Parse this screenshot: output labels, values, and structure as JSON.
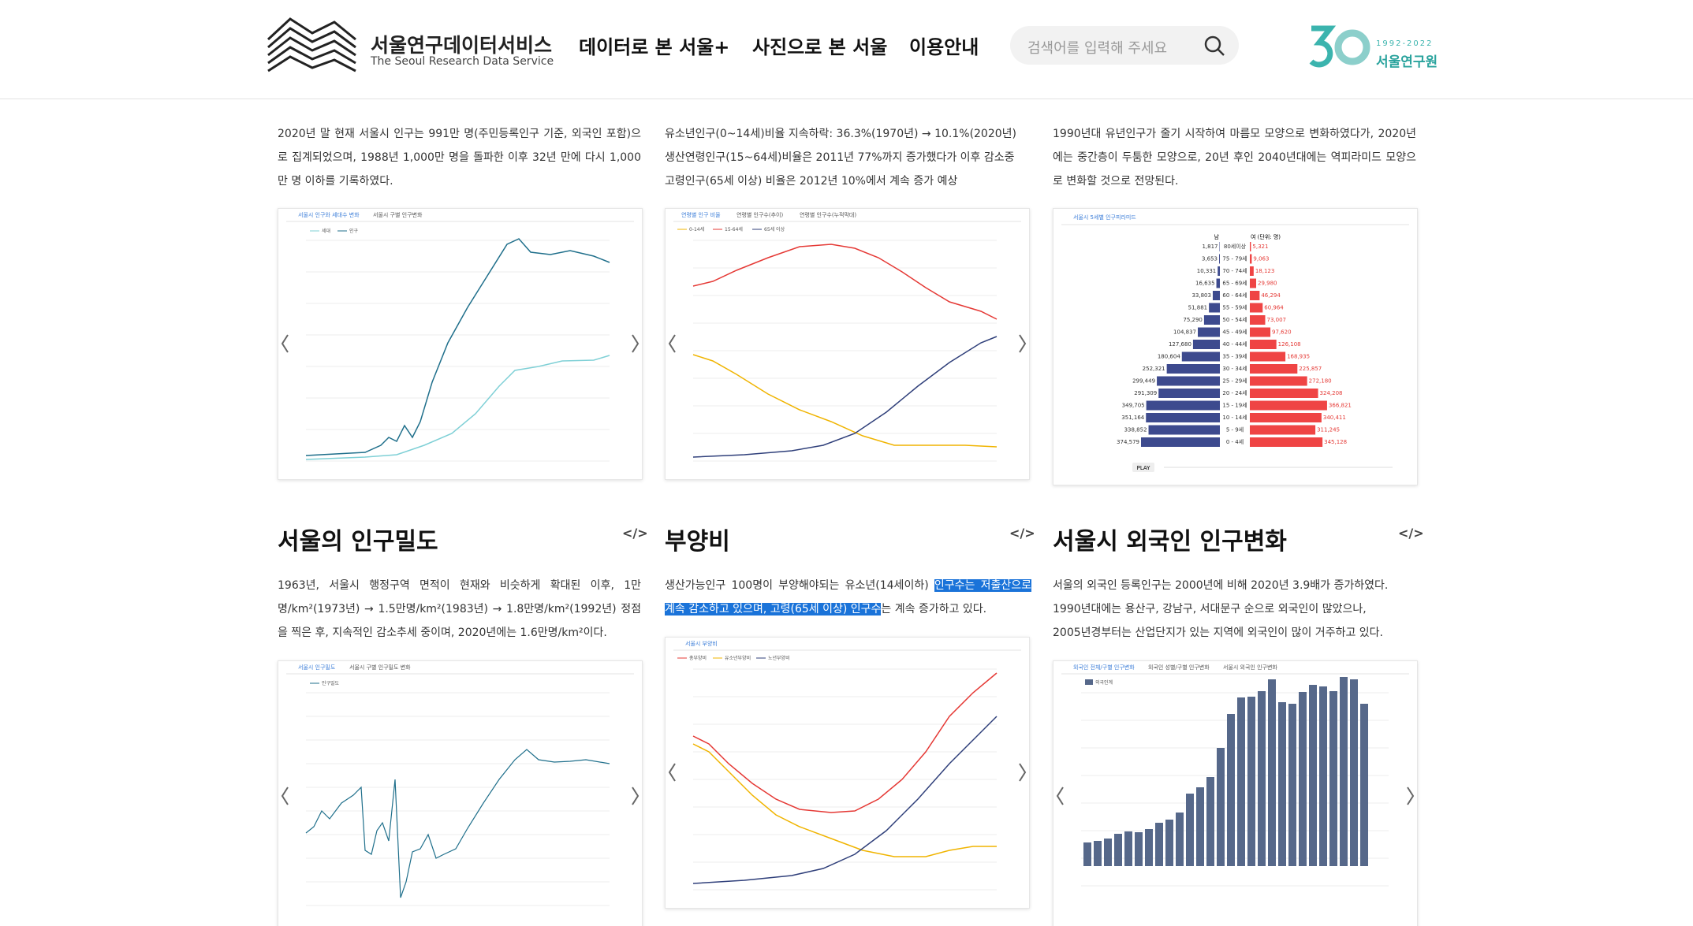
{
  "header": {
    "logo_title": "서울연구데이터서비스",
    "logo_subtitle": "The Seoul Research Data Service",
    "nav": [
      "데이터로 본 서울+",
      "사진으로 본 서울",
      "이용안내"
    ],
    "search_placeholder": "검색어를 입력해 주세요",
    "badge_years": "1992-2022",
    "badge_name": "서울연구원"
  },
  "cards": [
    {
      "text": "2020년 말 현재 서울시 인구는 991만 명(주민등록인구 기준, 외국인 포함)으로 집계되었으며, 1988년 1,000만 명을 돌파한 이후 32년 만에 다시 1,000만 명 이하를 기록하였다.",
      "tabs": [
        "서울시 인구와 세대수 변화",
        "서울시 구별 인구변화"
      ],
      "legend": [
        "세대",
        "인구"
      ]
    },
    {
      "text_lines": [
        "유소년인구(0~14세)비율 지속하락: 36.3%(1970년) → 10.1%(2020년)",
        "생산연령인구(15~64세)비율은 2011년 77%까지 증가했다가 이후 감소중",
        "고령인구(65세 이상) 비율은 2012년 10%에서 계속 증가 예상"
      ],
      "tabs": [
        "연령별 인구 비율",
        "연령별 인구수(추이)",
        "연령별 인구수(누적막대)"
      ],
      "legend": [
        "0-14세",
        "15-64세",
        "65세 이상"
      ]
    },
    {
      "text": "1990년대 유년인구가 줄기 시작하여 마름모 모양으로 변화하였다가, 2020년에는 중간층이 두툼한 모양으로, 20년 후인 2040년대에는 역피라미드 모양으로 변화할 것으로 전망된다.",
      "tabs": [
        "서울시 5세별 인구피라미드"
      ],
      "pyramid": {
        "male_header": "남",
        "female_header": "여 (단위: 명)",
        "play": "PLAY",
        "ages": [
          "80세이상",
          "75 - 79세",
          "70 - 74세",
          "65 - 69세",
          "60 - 64세",
          "55 - 59세",
          "50 - 54세",
          "45 - 49세",
          "40 - 44세",
          "35 - 39세",
          "30 - 34세",
          "25 - 29세",
          "20 - 24세",
          "15 - 19세",
          "10 - 14세",
          "5 - 9세",
          "0 - 4세"
        ],
        "male": [
          1817,
          3653,
          10331,
          16635,
          33803,
          51881,
          75290,
          104837,
          127680,
          180604,
          252321,
          299449,
          291309,
          349705,
          351164,
          338852,
          374579
        ],
        "male_labels": [
          "1,817",
          "3,653",
          "10,331",
          "16,635",
          "33,803",
          "51,881",
          "75,290",
          "104,837",
          "127,680",
          "180,604",
          "252,321",
          "299,449",
          "291,309",
          "349,705",
          "351,164",
          "338,852",
          "374,579"
        ],
        "female": [
          5321,
          9063,
          18123,
          29980,
          46294,
          60964,
          73007,
          97620,
          126108,
          168935,
          225857,
          272180,
          324208,
          366821,
          340411,
          311245,
          345128
        ],
        "female_labels": [
          "5,321",
          "9,063",
          "18,123",
          "29,980",
          "46,294",
          "60,964",
          "73,007",
          "97,620",
          "126,108",
          "168,935",
          "225,857",
          "272,180",
          "324,208",
          "366,821",
          "340,411",
          "311,245",
          "345,128"
        ]
      }
    },
    {
      "title": "서울의 인구밀도",
      "code_icon": "</>",
      "text": "1963년, 서울시 행정구역 면적이 현재와 비슷하게 확대된 이후, 1만명/km²(1973년) → 1.5만명/km²(1983년) → 1.8만명/km²(1992년) 정점을 찍은 후, 지속적인 감소추세 중이며, 2020년에는 1.6만명/km²이다.",
      "tabs": [
        "서울시 인구밀도",
        "서울시 구별 인구밀도 변화"
      ],
      "legend": [
        "인구밀도"
      ]
    },
    {
      "title": "부양비",
      "code_icon": "</>",
      "text_parts": [
        "생산가능인구 100명이 부양해야되는 유소년(14세이하) ",
        "인구수는 저출산으로 계속 감소하고 있으며, 고령(65세 이상) 인구수",
        "는 계속 증가하고 있다."
      ],
      "tabs": [
        "서울시 부양비"
      ],
      "legend": [
        "총부양비",
        "유소년부양비",
        "노년부양비"
      ]
    },
    {
      "title": "서울시 외국인 인구변화",
      "code_icon": "</>",
      "text_lines": [
        "서울의 외국인 등록인구는 2000년에 비해 2020년 3.9배가 증가하였다.",
        "1990년대에는 용산구, 강남구, 서대문구 순으로 외국인이 많았으나,",
        "2005년경부터는 산업단지가 있는 지역에 외국인이 많이 거주하고 있다."
      ],
      "tabs": [
        "외국인 전체/구별 인구변화",
        "외국인 성별/구별 인구변화",
        "서울시 외국인 인구변화"
      ],
      "legend": [
        "외국인계"
      ]
    }
  ]
}
